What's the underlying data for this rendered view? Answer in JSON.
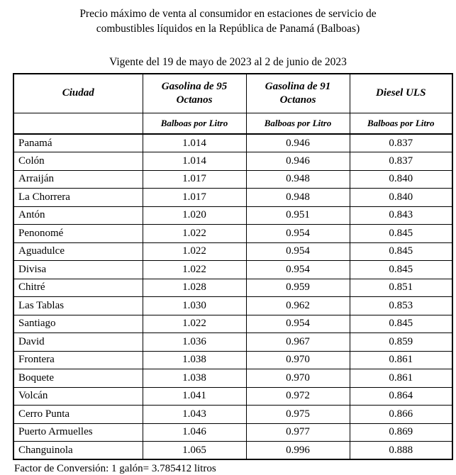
{
  "title": {
    "line1": "Precio máximo de venta al consumidor en estaciones de servicio de",
    "line2": "combustibles líquidos en la República de Panamá (Balboas)"
  },
  "subtitle": "Vigente del 19 de mayo de 2023 al 2 de junio de 2023",
  "table": {
    "columns": [
      "Ciudad",
      "Gasolina de 95 Octanos",
      "Gasolina de 91 Octanos",
      "Diesel ULS"
    ],
    "unit_row": [
      "",
      "Balboas por Litro",
      "Balboas por Litro",
      "Balboas por Litro"
    ],
    "rows": [
      {
        "ciudad": "Panamá",
        "g95": "1.014",
        "g91": "0.946",
        "diesel": "0.837"
      },
      {
        "ciudad": "Colón",
        "g95": "1.014",
        "g91": "0.946",
        "diesel": "0.837"
      },
      {
        "ciudad": "Arraiján",
        "g95": "1.017",
        "g91": "0.948",
        "diesel": "0.840"
      },
      {
        "ciudad": "La Chorrera",
        "g95": "1.017",
        "g91": "0.948",
        "diesel": "0.840"
      },
      {
        "ciudad": "Antón",
        "g95": "1.020",
        "g91": "0.951",
        "diesel": "0.843"
      },
      {
        "ciudad": "Penonomé",
        "g95": "1.022",
        "g91": "0.954",
        "diesel": "0.845"
      },
      {
        "ciudad": "Aguadulce",
        "g95": "1.022",
        "g91": "0.954",
        "diesel": "0.845"
      },
      {
        "ciudad": "Divisa",
        "g95": "1.022",
        "g91": "0.954",
        "diesel": "0.845"
      },
      {
        "ciudad": "Chitré",
        "g95": "1.028",
        "g91": "0.959",
        "diesel": "0.851"
      },
      {
        "ciudad": "Las Tablas",
        "g95": "1.030",
        "g91": "0.962",
        "diesel": "0.853"
      },
      {
        "ciudad": "Santiago",
        "g95": "1.022",
        "g91": "0.954",
        "diesel": "0.845"
      },
      {
        "ciudad": "David",
        "g95": "1.036",
        "g91": "0.967",
        "diesel": "0.859"
      },
      {
        "ciudad": "Frontera",
        "g95": "1.038",
        "g91": "0.970",
        "diesel": "0.861"
      },
      {
        "ciudad": "Boquete",
        "g95": "1.038",
        "g91": "0.970",
        "diesel": "0.861"
      },
      {
        "ciudad": "Volcán",
        "g95": "1.041",
        "g91": "0.972",
        "diesel": "0.864"
      },
      {
        "ciudad": "Cerro Punta",
        "g95": "1.043",
        "g91": "0.975",
        "diesel": "0.866"
      },
      {
        "ciudad": "Puerto Armuelles",
        "g95": "1.046",
        "g91": "0.977",
        "diesel": "0.869"
      },
      {
        "ciudad": "Changuinola",
        "g95": "1.065",
        "g91": "0.996",
        "diesel": "0.888"
      }
    ]
  },
  "footer": "Factor de Conversión:  1 galón= 3.785412 litros",
  "colors": {
    "text": "#000000",
    "background": "#ffffff",
    "border": "#000000"
  }
}
